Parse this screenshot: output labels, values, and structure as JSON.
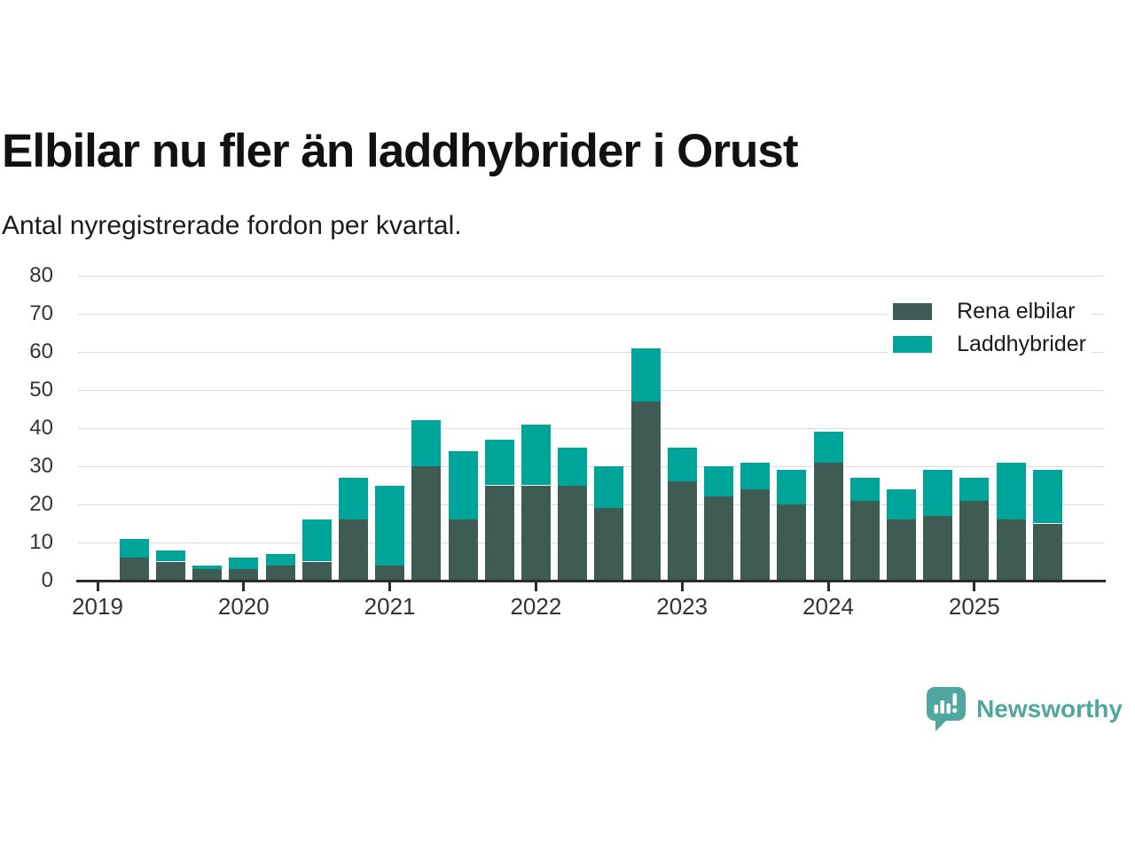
{
  "header": {
    "title": "Elbilar nu fler än laddhybrider i Orust",
    "subtitle": "Antal nyregistrerade fordon per kvartal."
  },
  "footer": {
    "brand": "Newsworthy"
  },
  "colors": {
    "electric": "#3E5B54",
    "hybrid": "#00A59A",
    "logo": "#4FA79F",
    "axis": "#2B2B2B",
    "grid": "#DADADA",
    "tick_text": "#333333"
  },
  "chart_data": {
    "type": "bar",
    "stacked": true,
    "title": "Elbilar nu fler än laddhybrider i Orust",
    "subtitle": "Antal nyregistrerade fordon per kvartal.",
    "xlabel": "",
    "ylabel": "",
    "ylim": [
      0,
      80
    ],
    "yticks": [
      0,
      10,
      20,
      30,
      40,
      50,
      60,
      70,
      80
    ],
    "year_ticks": [
      "2019",
      "2020",
      "2021",
      "2022",
      "2023",
      "2024",
      "2025"
    ],
    "grid": true,
    "legend_position": "top-right",
    "categories": [
      "2019 Q2",
      "2019 Q3",
      "2019 Q4",
      "2020 Q1",
      "2020 Q2",
      "2020 Q3",
      "2020 Q4",
      "2021 Q1",
      "2021 Q2",
      "2021 Q3",
      "2021 Q4",
      "2022 Q1",
      "2022 Q2",
      "2022 Q3",
      "2022 Q4",
      "2023 Q1",
      "2023 Q2",
      "2023 Q3",
      "2023 Q4",
      "2024 Q1",
      "2024 Q2",
      "2024 Q3",
      "2024 Q4",
      "2025 Q1",
      "2025 Q2",
      "2025 Q3"
    ],
    "series": [
      {
        "name": "Rena elbilar",
        "color": "#3E5B54",
        "values": [
          6,
          5,
          3,
          3,
          4,
          5,
          16,
          4,
          30,
          16,
          25,
          25,
          25,
          19,
          47,
          26,
          22,
          24,
          20,
          31,
          21,
          16,
          17,
          21,
          16,
          15
        ]
      },
      {
        "name": "Laddhybrider",
        "color": "#00A59A",
        "values": [
          5,
          3,
          1,
          3,
          3,
          11,
          11,
          21,
          12,
          18,
          12,
          16,
          10,
          11,
          14,
          9,
          8,
          7,
          9,
          8,
          6,
          8,
          12,
          6,
          15,
          14
        ]
      }
    ]
  }
}
